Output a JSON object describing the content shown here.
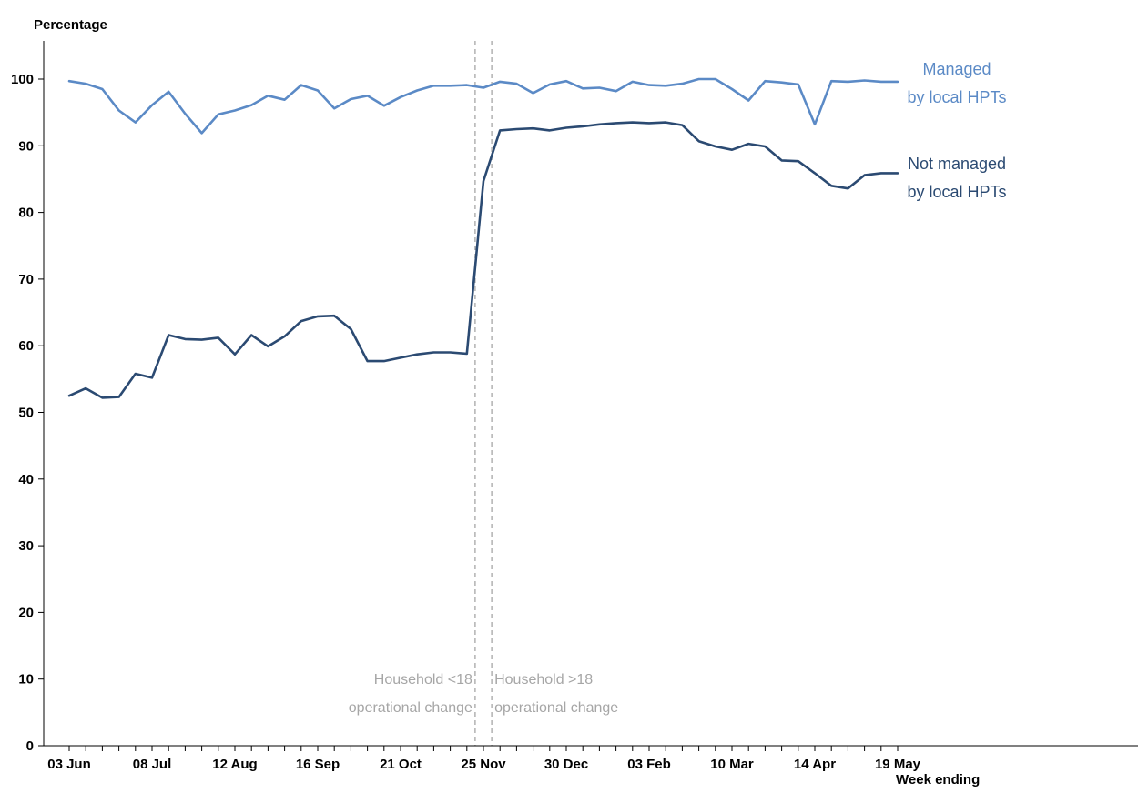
{
  "chart_data": {
    "type": "line",
    "ylabel": "Percentage",
    "xlabel": "Week ending",
    "ylim": [
      0,
      105
    ],
    "yticks": [
      0,
      10,
      20,
      30,
      40,
      50,
      60,
      70,
      80,
      90,
      100
    ],
    "x": [
      "03 Jun",
      "10 Jun",
      "17 Jun",
      "24 Jun",
      "01 Jul",
      "08 Jul",
      "15 Jul",
      "22 Jul",
      "29 Jul",
      "05 Aug",
      "12 Aug",
      "19 Aug",
      "26 Aug",
      "02 Sep",
      "09 Sep",
      "16 Sep",
      "23 Sep",
      "30 Sep",
      "07 Oct",
      "14 Oct",
      "21 Oct",
      "28 Oct",
      "04 Nov",
      "11 Nov",
      "18 Nov",
      "25 Nov",
      "02 Dec",
      "09 Dec",
      "16 Dec",
      "23 Dec",
      "30 Dec",
      "06 Jan",
      "13 Jan",
      "20 Jan",
      "27 Jan",
      "03 Feb",
      "10 Feb",
      "17 Feb",
      "24 Feb",
      "03 Mar",
      "10 Mar",
      "17 Mar",
      "24 Mar",
      "31 Mar",
      "07 Apr",
      "14 Apr",
      "21 Apr",
      "28 Apr",
      "05 May",
      "12 May",
      "19 May"
    ],
    "xtick_labels": [
      "03 Jun",
      "08 Jul",
      "12 Aug",
      "16 Sep",
      "21 Oct",
      "25 Nov",
      "30 Dec",
      "03 Feb",
      "10 Mar",
      "14 Apr",
      "19 May"
    ],
    "series": [
      {
        "name": "Managed by local HPTs",
        "label_lines": [
          "Managed",
          "by local HPTs"
        ],
        "color": "#5b8ac6",
        "values": [
          99.7,
          99.3,
          98.5,
          95.3,
          93.5,
          96.1,
          98.1,
          94.8,
          91.9,
          94.7,
          95.3,
          96.1,
          97.5,
          96.9,
          99.1,
          98.3,
          95.6,
          97.0,
          97.5,
          96.0,
          97.3,
          98.3,
          99.0,
          99.0,
          99.1,
          98.7,
          99.6,
          99.3,
          97.9,
          99.2,
          99.7,
          98.6,
          98.7,
          98.2,
          99.6,
          99.1,
          99.0,
          99.3,
          100.0,
          100.0,
          98.5,
          96.8,
          99.7,
          99.5,
          99.2,
          93.2,
          99.7,
          99.6,
          99.8,
          99.6,
          99.6
        ]
      },
      {
        "name": "Not managed by local HPTs",
        "label_lines": [
          "Not managed",
          "by local HPTs"
        ],
        "color": "#2b4a72",
        "values": [
          52.5,
          53.6,
          52.2,
          52.3,
          55.8,
          55.2,
          61.6,
          61.0,
          60.9,
          61.2,
          58.7,
          61.6,
          59.9,
          61.4,
          63.7,
          64.4,
          64.5,
          62.5,
          57.7,
          57.7,
          58.2,
          58.7,
          59.0,
          59.0,
          58.8,
          84.7,
          92.3,
          92.5,
          92.6,
          92.3,
          92.7,
          92.9,
          93.2,
          93.4,
          93.5,
          93.4,
          93.5,
          93.1,
          90.7,
          89.9,
          89.4,
          90.3,
          89.9,
          87.8,
          87.7,
          85.9,
          84.0,
          83.6,
          85.6,
          85.9,
          85.9
        ]
      }
    ],
    "annotations": [
      {
        "after": "18 Nov",
        "lines": [
          "Household <18",
          "operational change"
        ],
        "align": "left"
      },
      {
        "after": "25 Nov",
        "lines": [
          "Household >18",
          "operational change"
        ],
        "align": "right"
      }
    ],
    "grid": false,
    "colors": {
      "axis": "#000000",
      "reference_line": "#a6a6a6",
      "annotation_text": "#a6a6a6"
    }
  }
}
